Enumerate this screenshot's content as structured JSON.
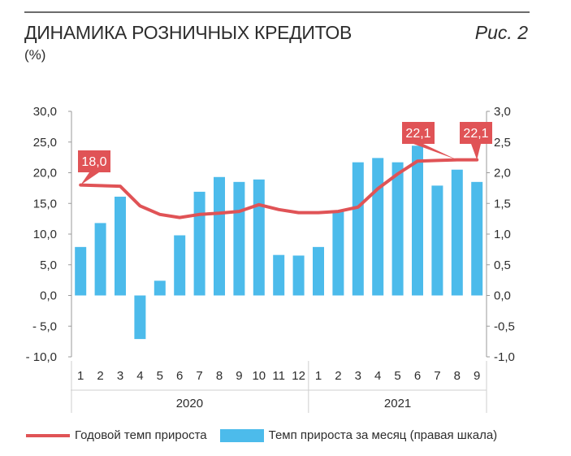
{
  "header": {
    "title": "ДИНАМИКА РОЗНИЧНЫХ КРЕДИТОВ",
    "subtitle": "(%)",
    "figure_label": "Рис. 2"
  },
  "legend": {
    "line_label": "Годовой темп прироста",
    "bar_label": "Темп прироста за месяц (правая шкала)"
  },
  "colors": {
    "line": "#e05356",
    "bars": "#4cbbeb",
    "axis": "#9a9a9a",
    "grid": "#cfcfcf"
  },
  "chart_data": {
    "type": "bar+line",
    "categories": [
      "1",
      "2",
      "3",
      "4",
      "5",
      "6",
      "7",
      "8",
      "9",
      "10",
      "11",
      "12",
      "1",
      "2",
      "3",
      "4",
      "5",
      "6",
      "7",
      "8",
      "9"
    ],
    "year_groups": [
      {
        "label": "2020",
        "count": 12
      },
      {
        "label": "2021",
        "count": 9
      }
    ],
    "left_axis": {
      "ylim": [
        -10,
        30
      ],
      "ticks": [
        "30,0",
        "25,0",
        "20,0",
        "15,0",
        "10,0",
        "5,0",
        "0,0",
        "- 5,0",
        "- 10,0"
      ],
      "tick_values": [
        30,
        25,
        20,
        15,
        10,
        5,
        0,
        -5,
        -10
      ]
    },
    "right_axis": {
      "ylim": [
        -1,
        3
      ],
      "ticks": [
        "3,0",
        "2,5",
        "2,0",
        "1,5",
        "1,0",
        "0,5",
        "0,0",
        "-0,5",
        "-1,0"
      ],
      "tick_values": [
        3,
        2.5,
        2,
        1.5,
        1,
        0.5,
        0,
        -0.5,
        -1
      ]
    },
    "series": [
      {
        "name": "Темп прироста за месяц (правая шкала)",
        "type": "bar",
        "axis": "right",
        "values": [
          0.79,
          1.18,
          1.61,
          -0.71,
          0.24,
          0.98,
          1.69,
          1.93,
          1.85,
          1.89,
          0.66,
          0.65,
          0.79,
          1.37,
          2.17,
          2.24,
          2.17,
          2.44,
          1.79,
          2.05,
          1.85
        ]
      },
      {
        "name": "Годовой темп прироста",
        "type": "line",
        "axis": "left",
        "values": [
          18.0,
          17.9,
          17.8,
          14.6,
          13.2,
          12.7,
          13.2,
          13.4,
          13.7,
          14.8,
          14.0,
          13.5,
          13.5,
          13.7,
          14.4,
          17.4,
          19.8,
          21.9,
          22.0,
          22.1,
          22.1
        ]
      }
    ],
    "callouts": [
      {
        "index": 0,
        "text": "18,0"
      },
      {
        "index": 19,
        "text": "22,1"
      },
      {
        "index": 20,
        "text": "22,1"
      }
    ]
  }
}
